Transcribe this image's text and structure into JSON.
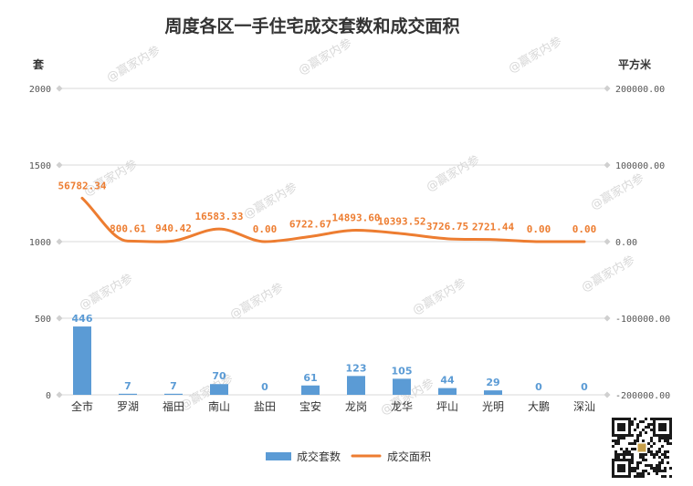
{
  "chart_data": {
    "type": "bar",
    "title": "周度各区一手住宅成交套数和成交面积",
    "y_left_unit": "套",
    "y_right_unit": "平方米",
    "y_left_ticks": [
      "0",
      "500",
      "1000",
      "1500",
      "2000"
    ],
    "y_right_ticks": [
      "-200000.00",
      "-100000.00",
      "0.00",
      "100000.00",
      "200000.00"
    ],
    "ylim_left": [
      0,
      2000
    ],
    "ylim_right": [
      -200000,
      200000
    ],
    "categories": [
      "全市",
      "罗湖",
      "福田",
      "南山",
      "盐田",
      "宝安",
      "龙岗",
      "龙华",
      "坪山",
      "光明",
      "大鹏",
      "深汕"
    ],
    "series": [
      {
        "name": "成交套数",
        "type": "bar",
        "axis": "left",
        "color": "#5b9bd5",
        "values": [
          446,
          7,
          7,
          70,
          0,
          61,
          123,
          105,
          44,
          29,
          0,
          0
        ],
        "labels": [
          "446",
          "7",
          "7",
          "70",
          "0",
          "61",
          "123",
          "105",
          "44",
          "29",
          "0",
          "0"
        ]
      },
      {
        "name": "成交面积",
        "type": "line",
        "smooth": true,
        "axis": "right",
        "color": "#ed7d31",
        "values": [
          56782.34,
          800.61,
          940.42,
          16583.33,
          0,
          6722.67,
          14893.6,
          10393.52,
          3726.75,
          2721.44,
          0,
          0
        ],
        "labels": [
          "56782.34",
          "800.61",
          "940.42",
          "16583.33",
          "0.00",
          "6722.67",
          "14893.60",
          "10393.52",
          "3726.75",
          "2721.44",
          "0.00",
          "0.00"
        ]
      }
    ],
    "grid": true,
    "legend_position": "bottom",
    "watermark": "@赢家内参",
    "qr_code": true
  }
}
